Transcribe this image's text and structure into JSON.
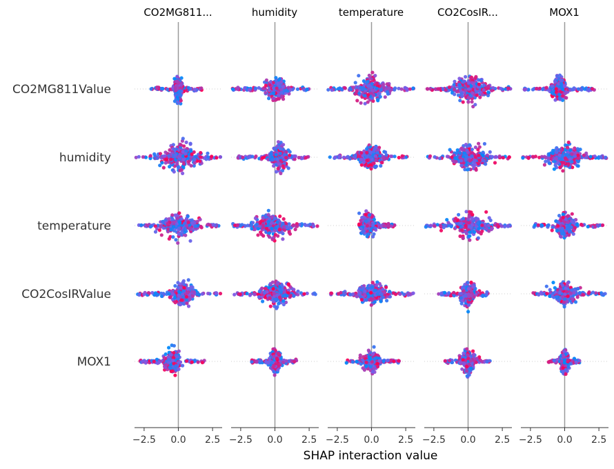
{
  "chart_data": {
    "type": "scatter",
    "subtype": "shap_interaction_beeswarm_matrix",
    "xlabel": "SHAP interaction value",
    "column_titles": [
      "CO2MG811...",
      "humidity",
      "temperature",
      "CO2CosIR...",
      "MOX1"
    ],
    "row_labels": [
      "CO2MG811Value",
      "humidity",
      "temperature",
      "CO2CosIRValue",
      "MOX1"
    ],
    "xlim": [
      -3.2,
      3.2
    ],
    "xticks": [
      -2.5,
      0,
      2.5
    ],
    "xtick_labels": [
      "−2.5",
      "0.0",
      "2.5"
    ],
    "colors": {
      "low": "#008bfb",
      "high": "#ff0052",
      "zero_line": "#999999",
      "row_grid": "#cccccc"
    },
    "cells": [
      [
        {
          "min": -2.0,
          "max": 1.8,
          "dense": 0.6,
          "height": 1.0,
          "bias": 0.0
        },
        {
          "min": -3.1,
          "max": 2.6,
          "dense": 1.4,
          "height": 0.9,
          "bias": 0.1
        },
        {
          "min": -3.2,
          "max": 3.1,
          "dense": 2.2,
          "height": 0.95,
          "bias": 0.0
        },
        {
          "min": -3.1,
          "max": 3.1,
          "dense": 2.4,
          "height": 1.0,
          "bias": 0.3
        },
        {
          "min": -3.1,
          "max": 2.2,
          "dense": 1.0,
          "height": 1.0,
          "bias": -0.4
        }
      ],
      [
        {
          "min": -3.1,
          "max": 3.1,
          "dense": 2.6,
          "height": 1.0,
          "bias": 0.2
        },
        {
          "min": -2.7,
          "max": 2.5,
          "dense": 1.2,
          "height": 1.0,
          "bias": 0.3
        },
        {
          "min": -3.1,
          "max": 2.6,
          "dense": 1.8,
          "height": 0.9,
          "bias": 0.0
        },
        {
          "min": -3.1,
          "max": 3.1,
          "dense": 2.6,
          "height": 0.95,
          "bias": 0.1
        },
        {
          "min": -3.1,
          "max": 3.1,
          "dense": 2.4,
          "height": 0.95,
          "bias": 0.0
        }
      ],
      [
        {
          "min": -3.1,
          "max": 3.1,
          "dense": 2.4,
          "height": 1.0,
          "bias": 0.0
        },
        {
          "min": -3.1,
          "max": 3.1,
          "dense": 2.2,
          "height": 1.0,
          "bias": -0.2
        },
        {
          "min": -0.9,
          "max": 1.7,
          "dense": 1.0,
          "height": 0.9,
          "bias": -0.3
        },
        {
          "min": -3.1,
          "max": 3.1,
          "dense": 2.8,
          "height": 1.0,
          "bias": 0.2
        },
        {
          "min": -2.4,
          "max": 2.8,
          "dense": 1.2,
          "height": 0.9,
          "bias": 0.0
        }
      ],
      [
        {
          "min": -3.1,
          "max": 3.1,
          "dense": 1.6,
          "height": 0.95,
          "bias": 0.3
        },
        {
          "min": -3.1,
          "max": 3.1,
          "dense": 2.0,
          "height": 1.0,
          "bias": 0.2
        },
        {
          "min": -3.0,
          "max": 3.1,
          "dense": 2.0,
          "height": 0.8,
          "bias": 0.1
        },
        {
          "min": -2.2,
          "max": 1.6,
          "dense": 0.9,
          "height": 1.0,
          "bias": 0.0
        },
        {
          "min": -2.6,
          "max": 3.1,
          "dense": 1.8,
          "height": 0.9,
          "bias": 0.0
        }
      ],
      [
        {
          "min": -2.8,
          "max": 1.9,
          "dense": 1.0,
          "height": 0.9,
          "bias": -0.4
        },
        {
          "min": -1.7,
          "max": 1.7,
          "dense": 0.8,
          "height": 0.9,
          "bias": 0.0
        },
        {
          "min": -1.9,
          "max": 2.1,
          "dense": 1.1,
          "height": 0.85,
          "bias": 0.0
        },
        {
          "min": -1.7,
          "max": 1.6,
          "dense": 1.0,
          "height": 0.85,
          "bias": 0.0
        },
        {
          "min": -1.2,
          "max": 1.1,
          "dense": 0.5,
          "height": 0.85,
          "bias": 0.0
        }
      ]
    ]
  }
}
